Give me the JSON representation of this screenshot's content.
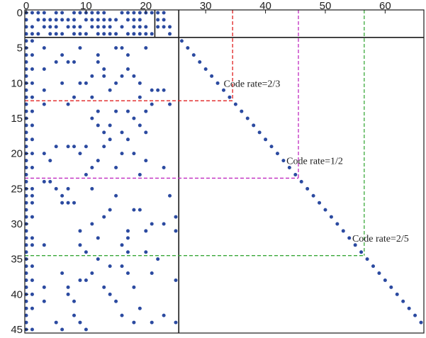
{
  "chart_data": {
    "type": "scatter",
    "title": "",
    "xlabel": "",
    "ylabel": "",
    "x_axis_position": "top",
    "y_axis_inverted": true,
    "xlim": [
      0,
      66
    ],
    "ylim": [
      0,
      45
    ],
    "x_ticks": [
      "0",
      "10",
      "20",
      "30",
      "40",
      "50",
      "60"
    ],
    "y_ticks": [
      "0",
      "5",
      "10",
      "15",
      "20",
      "25",
      "30",
      "35",
      "40",
      "45"
    ],
    "marker_color": "#2b4aa0",
    "points": [
      [
        0,
        0
      ],
      [
        1,
        0
      ],
      [
        2,
        0
      ],
      [
        3,
        0
      ],
      [
        5,
        0
      ],
      [
        6,
        0
      ],
      [
        8,
        0
      ],
      [
        9,
        0
      ],
      [
        10,
        0
      ],
      [
        11,
        0
      ],
      [
        12,
        0
      ],
      [
        13,
        0
      ],
      [
        16,
        0
      ],
      [
        17,
        0
      ],
      [
        18,
        0
      ],
      [
        19,
        0
      ],
      [
        20,
        0
      ],
      [
        21,
        0
      ],
      [
        22,
        0
      ],
      [
        23,
        0
      ],
      [
        0,
        1
      ],
      [
        2,
        1
      ],
      [
        3,
        1
      ],
      [
        4,
        1
      ],
      [
        5,
        1
      ],
      [
        6,
        1
      ],
      [
        7,
        1
      ],
      [
        8,
        1
      ],
      [
        10,
        1
      ],
      [
        11,
        1
      ],
      [
        12,
        1
      ],
      [
        13,
        1
      ],
      [
        14,
        1
      ],
      [
        15,
        1
      ],
      [
        17,
        1
      ],
      [
        18,
        1
      ],
      [
        19,
        1
      ],
      [
        22,
        1
      ],
      [
        23,
        1
      ],
      [
        0,
        2
      ],
      [
        1,
        2
      ],
      [
        3,
        2
      ],
      [
        4,
        2
      ],
      [
        5,
        2
      ],
      [
        7,
        2
      ],
      [
        8,
        2
      ],
      [
        9,
        2
      ],
      [
        11,
        2
      ],
      [
        12,
        2
      ],
      [
        13,
        2
      ],
      [
        14,
        2
      ],
      [
        16,
        2
      ],
      [
        18,
        2
      ],
      [
        19,
        2
      ],
      [
        20,
        2
      ],
      [
        22,
        2
      ],
      [
        23,
        2
      ],
      [
        24,
        2
      ],
      [
        0,
        3
      ],
      [
        1,
        3
      ],
      [
        2,
        3
      ],
      [
        4,
        3
      ],
      [
        5,
        3
      ],
      [
        6,
        3
      ],
      [
        8,
        3
      ],
      [
        9,
        3
      ],
      [
        10,
        3
      ],
      [
        12,
        3
      ],
      [
        13,
        3
      ],
      [
        14,
        3
      ],
      [
        15,
        3
      ],
      [
        17,
        3
      ],
      [
        18,
        3
      ],
      [
        19,
        3
      ],
      [
        20,
        3
      ],
      [
        21,
        3
      ],
      [
        24,
        3
      ],
      [
        0,
        4
      ],
      [
        0,
        5
      ],
      [
        0,
        6
      ],
      [
        0,
        7
      ],
      [
        0,
        8
      ],
      [
        0,
        9
      ],
      [
        0,
        10
      ],
      [
        0,
        11
      ],
      [
        0,
        12
      ],
      [
        1,
        4
      ],
      [
        1,
        6
      ],
      [
        1,
        8
      ],
      [
        1,
        10
      ],
      [
        1,
        12
      ],
      [
        3,
        5
      ],
      [
        3,
        8
      ],
      [
        3,
        11
      ],
      [
        5,
        7
      ],
      [
        6,
        6
      ],
      [
        6,
        10
      ],
      [
        7,
        7
      ],
      [
        8,
        7
      ],
      [
        8,
        12
      ],
      [
        9,
        5
      ],
      [
        9,
        10
      ],
      [
        10,
        10
      ],
      [
        11,
        9
      ],
      [
        11,
        12
      ],
      [
        12,
        6
      ],
      [
        12,
        7
      ],
      [
        13,
        8
      ],
      [
        13,
        9
      ],
      [
        14,
        11
      ],
      [
        15,
        5
      ],
      [
        15,
        10
      ],
      [
        16,
        5
      ],
      [
        16,
        9
      ],
      [
        17,
        6
      ],
      [
        17,
        8
      ],
      [
        18,
        9
      ],
      [
        19,
        10
      ],
      [
        19,
        12
      ],
      [
        20,
        5
      ],
      [
        21,
        11
      ],
      [
        22,
        11
      ],
      [
        23,
        11
      ],
      [
        0,
        13
      ],
      [
        0,
        14
      ],
      [
        0,
        15
      ],
      [
        0,
        16
      ],
      [
        0,
        17
      ],
      [
        0,
        18
      ],
      [
        0,
        19
      ],
      [
        0,
        20
      ],
      [
        0,
        21
      ],
      [
        0,
        22
      ],
      [
        0,
        23
      ],
      [
        1,
        14
      ],
      [
        1,
        16
      ],
      [
        1,
        18
      ],
      [
        1,
        20
      ],
      [
        1,
        22
      ],
      [
        3,
        13
      ],
      [
        3,
        20
      ],
      [
        4,
        21
      ],
      [
        5,
        19
      ],
      [
        7,
        13
      ],
      [
        7,
        19
      ],
      [
        8,
        19
      ],
      [
        9,
        20
      ],
      [
        10,
        19
      ],
      [
        10,
        23
      ],
      [
        11,
        15
      ],
      [
        11,
        22
      ],
      [
        12,
        14
      ],
      [
        12,
        16
      ],
      [
        12,
        21
      ],
      [
        13,
        17
      ],
      [
        13,
        19
      ],
      [
        14,
        16
      ],
      [
        14,
        18
      ],
      [
        15,
        14
      ],
      [
        15,
        22
      ],
      [
        16,
        17
      ],
      [
        16,
        20
      ],
      [
        17,
        14
      ],
      [
        17,
        18
      ],
      [
        18,
        15
      ],
      [
        18,
        20
      ],
      [
        19,
        16
      ],
      [
        19,
        23
      ],
      [
        20,
        14
      ],
      [
        20,
        17
      ],
      [
        20,
        21
      ],
      [
        21,
        13
      ],
      [
        23,
        22
      ],
      [
        24,
        13
      ],
      [
        0,
        24
      ],
      [
        0,
        25
      ],
      [
        0,
        26
      ],
      [
        0,
        27
      ],
      [
        0,
        28
      ],
      [
        0,
        29
      ],
      [
        0,
        30
      ],
      [
        0,
        31
      ],
      [
        0,
        32
      ],
      [
        0,
        33
      ],
      [
        0,
        34
      ],
      [
        1,
        25
      ],
      [
        1,
        26
      ],
      [
        1,
        27
      ],
      [
        1,
        29
      ],
      [
        1,
        32
      ],
      [
        1,
        33
      ],
      [
        3,
        24
      ],
      [
        3,
        33
      ],
      [
        4,
        24
      ],
      [
        5,
        25
      ],
      [
        6,
        26
      ],
      [
        6,
        27
      ],
      [
        7,
        25
      ],
      [
        7,
        27
      ],
      [
        8,
        27
      ],
      [
        9,
        31
      ],
      [
        9,
        33
      ],
      [
        10,
        34
      ],
      [
        11,
        25
      ],
      [
        11,
        30
      ],
      [
        12,
        32
      ],
      [
        13,
        29
      ],
      [
        14,
        28
      ],
      [
        15,
        26
      ],
      [
        16,
        33
      ],
      [
        17,
        31
      ],
      [
        17,
        32
      ],
      [
        18,
        28
      ],
      [
        19,
        28
      ],
      [
        20,
        31
      ],
      [
        21,
        30
      ],
      [
        23,
        30
      ],
      [
        24,
        26
      ],
      [
        25,
        29
      ],
      [
        25,
        31
      ],
      [
        0,
        35
      ],
      [
        0,
        36
      ],
      [
        0,
        37
      ],
      [
        0,
        38
      ],
      [
        0,
        39
      ],
      [
        0,
        40
      ],
      [
        0,
        41
      ],
      [
        0,
        42
      ],
      [
        0,
        43
      ],
      [
        0,
        44
      ],
      [
        0,
        45
      ],
      [
        1,
        36
      ],
      [
        1,
        38
      ],
      [
        1,
        40
      ],
      [
        1,
        42
      ],
      [
        1,
        45
      ],
      [
        3,
        39
      ],
      [
        3,
        41
      ],
      [
        5,
        44
      ],
      [
        6,
        37
      ],
      [
        6,
        45
      ],
      [
        7,
        39
      ],
      [
        7,
        40
      ],
      [
        8,
        41
      ],
      [
        8,
        43
      ],
      [
        9,
        38
      ],
      [
        9,
        44
      ],
      [
        10,
        38
      ],
      [
        10,
        45
      ],
      [
        11,
        37
      ],
      [
        12,
        35
      ],
      [
        13,
        39
      ],
      [
        14,
        36
      ],
      [
        14,
        40
      ],
      [
        15,
        41
      ],
      [
        16,
        36
      ],
      [
        16,
        43
      ],
      [
        17,
        34
      ],
      [
        17,
        37
      ],
      [
        18,
        39
      ],
      [
        18,
        44
      ],
      [
        19,
        42
      ],
      [
        20,
        34
      ],
      [
        21,
        37
      ],
      [
        22,
        35
      ],
      [
        23,
        43
      ],
      [
        21,
        44
      ],
      [
        25,
        38
      ],
      [
        25,
        44
      ],
      [
        26,
        4
      ],
      [
        27,
        5
      ],
      [
        28,
        6
      ],
      [
        29,
        7
      ],
      [
        30,
        8
      ],
      [
        31,
        9
      ],
      [
        32,
        10
      ],
      [
        33,
        11
      ],
      [
        34,
        12
      ],
      [
        35,
        13
      ],
      [
        36,
        14
      ],
      [
        37,
        15
      ],
      [
        38,
        16
      ],
      [
        39,
        17
      ],
      [
        40,
        18
      ],
      [
        41,
        19
      ],
      [
        42,
        20
      ],
      [
        43,
        21
      ],
      [
        44,
        22
      ],
      [
        45,
        23
      ],
      [
        46,
        24
      ],
      [
        47,
        25
      ],
      [
        48,
        26
      ],
      [
        49,
        27
      ],
      [
        50,
        28
      ],
      [
        51,
        29
      ],
      [
        52,
        30
      ],
      [
        53,
        31
      ],
      [
        54,
        32
      ],
      [
        55,
        33
      ],
      [
        56,
        34
      ],
      [
        57,
        35
      ],
      [
        58,
        36
      ],
      [
        59,
        37
      ],
      [
        60,
        38
      ],
      [
        61,
        39
      ],
      [
        62,
        40
      ],
      [
        63,
        41
      ],
      [
        64,
        42
      ],
      [
        65,
        43
      ],
      [
        66,
        44
      ]
    ],
    "reference_lines": [
      {
        "x1": 21.5,
        "y1": 0,
        "x2": 21.5,
        "y2": 3.5,
        "color": "#1a1a1a",
        "style": "solid"
      },
      {
        "x1": 0,
        "y1": 3.5,
        "x2": 66,
        "y2": 3.5,
        "color": "#1a1a1a",
        "style": "solid"
      },
      {
        "x1": 25.5,
        "y1": 0,
        "x2": 25.5,
        "y2": 45.5,
        "color": "#1a1a1a",
        "style": "solid"
      },
      {
        "x1": 0,
        "y1": 12.5,
        "x2": 34.5,
        "y2": 12.5,
        "color": "#e02020",
        "style": "dashed"
      },
      {
        "x1": 34.5,
        "y1": 0,
        "x2": 34.5,
        "y2": 12.5,
        "color": "#e02020",
        "style": "dashed"
      },
      {
        "x1": 0,
        "y1": 23.5,
        "x2": 45.5,
        "y2": 23.5,
        "color": "#c02bc0",
        "style": "dashed"
      },
      {
        "x1": 45.5,
        "y1": 0,
        "x2": 45.5,
        "y2": 23.5,
        "color": "#c02bc0",
        "style": "dashed"
      },
      {
        "x1": 0,
        "y1": 34.5,
        "x2": 56.5,
        "y2": 34.5,
        "color": "#3aa83a",
        "style": "dashed"
      },
      {
        "x1": 56.5,
        "y1": 0,
        "x2": 56.5,
        "y2": 34.5,
        "color": "#3aa83a",
        "style": "dashed"
      }
    ],
    "annotations": [
      {
        "text": "Code rate=2/3",
        "x": 33,
        "y": 10.5
      },
      {
        "text": "Code rate=1/2",
        "x": 43.5,
        "y": 21.5
      },
      {
        "text": "Code rate=2/5",
        "x": 54.5,
        "y": 32.5
      }
    ]
  }
}
